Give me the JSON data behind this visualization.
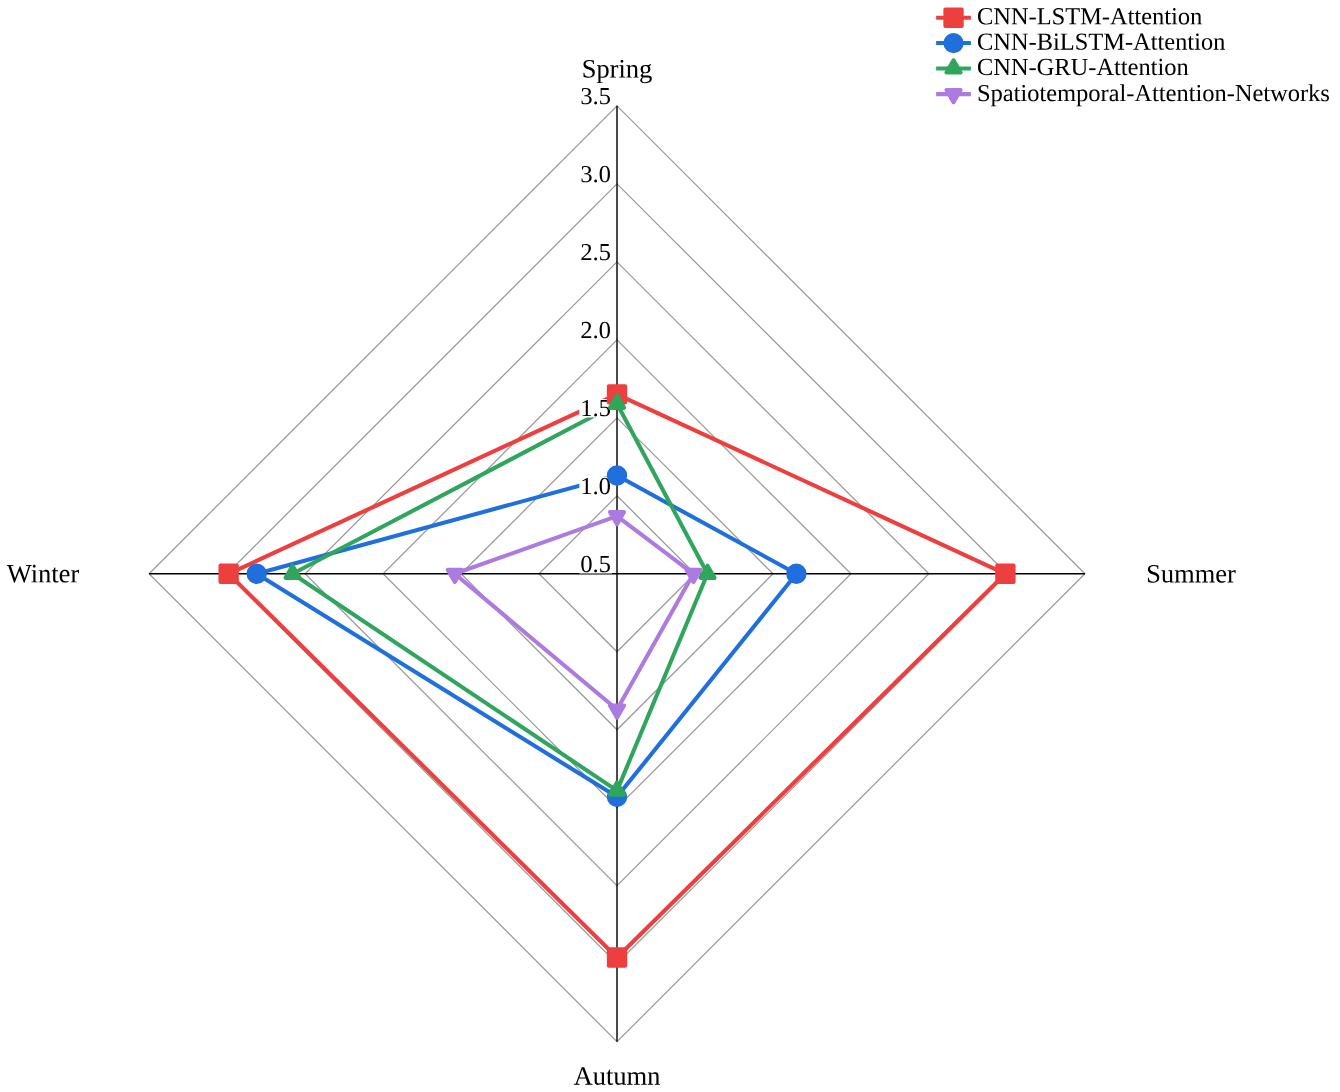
{
  "chart_data": {
    "type": "radar",
    "categories": [
      "Spring",
      "Summer",
      "Autumn",
      "Winter"
    ],
    "ylim": [
      0.5,
      3.5
    ],
    "yticks": [
      0.5,
      {
        "value": 1.0,
        "label": "1.0"
      },
      1.5,
      {
        "value": 2.0,
        "label": "2.0"
      },
      2.5,
      {
        "value": 3.0,
        "label": "3.0"
      },
      3.5
    ],
    "grid": true,
    "legend": "top right",
    "line_style": "solid",
    "series": [
      {
        "name": "CNN-LSTM-Attention",
        "color": "#ee3f3f",
        "marker": "square",
        "values": [
          1.65,
          2.99,
          2.96,
          2.99
        ]
      },
      {
        "name": "CNN-BiLSTM-Attention",
        "color": "#1f6fdc",
        "marker": "circle",
        "values": [
          1.13,
          1.65,
          1.93,
          2.81
        ]
      },
      {
        "name": "CNN-GRU-Attention",
        "color": "#2fa65c",
        "marker": "triangle",
        "values": [
          1.59,
          1.08,
          1.89,
          2.58
        ]
      },
      {
        "name": "Spatiotemporal-Attention-Networks",
        "color": "#ad7ae0",
        "marker": "triangle-down",
        "values": [
          0.87,
          0.99,
          1.37,
          1.54
        ]
      }
    ]
  }
}
